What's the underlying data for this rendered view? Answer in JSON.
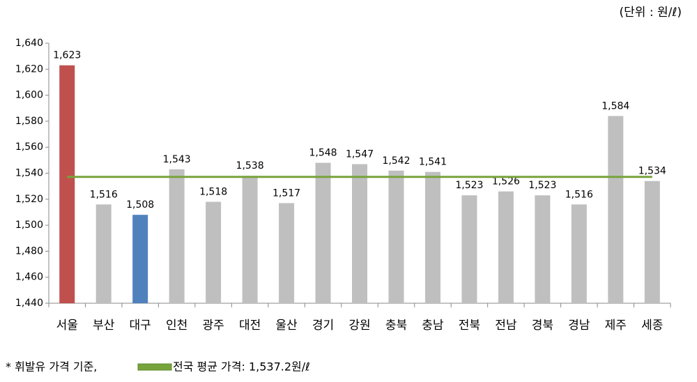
{
  "chart_data": {
    "type": "bar",
    "unit_note": "(단위 : 원/ℓ)",
    "categories": [
      "서울",
      "부산",
      "대구",
      "인천",
      "광주",
      "대전",
      "울산",
      "경기",
      "강원",
      "충북",
      "충남",
      "전북",
      "전남",
      "경북",
      "경남",
      "제주",
      "세종"
    ],
    "values": [
      1623,
      1516,
      1508,
      1543,
      1518,
      1538,
      1517,
      1548,
      1547,
      1542,
      1541,
      1523,
      1526,
      1523,
      1516,
      1584,
      1534
    ],
    "value_labels": [
      "1,623",
      "1,516",
      "1,508",
      "1,543",
      "1,518",
      "1,538",
      "1,517",
      "1,548",
      "1,547",
      "1,542",
      "1,541",
      "1,523",
      "1,526",
      "1,523",
      "1,516",
      "1,584",
      "1,534"
    ],
    "colors": [
      "#c0504d",
      "#bfbfbf",
      "#4f81bd",
      "#bfbfbf",
      "#bfbfbf",
      "#bfbfbf",
      "#bfbfbf",
      "#bfbfbf",
      "#bfbfbf",
      "#bfbfbf",
      "#bfbfbf",
      "#bfbfbf",
      "#bfbfbf",
      "#bfbfbf",
      "#bfbfbf",
      "#bfbfbf",
      "#bfbfbf"
    ],
    "ylim": [
      1440,
      1640
    ],
    "yticks": [
      {
        "value": 1440,
        "label": "1,440"
      },
      {
        "value": 1460,
        "label": "1,460"
      },
      {
        "value": 1480,
        "label": "1,480"
      },
      {
        "value": 1500,
        "label": "1,500"
      },
      {
        "value": 1520,
        "label": "1,520"
      },
      {
        "value": 1540,
        "label": "1,540"
      },
      {
        "value": 1560,
        "label": "1,560"
      },
      {
        "value": 1580,
        "label": "1,580"
      },
      {
        "value": 1600,
        "label": "1,600"
      },
      {
        "value": 1620,
        "label": "1,620"
      },
      {
        "value": 1640,
        "label": "1,640"
      }
    ],
    "average": {
      "value": 1537.2,
      "label": "전국 평균 가격: 1,537.2원/ℓ",
      "color": "#77a33c"
    },
    "footnote": "* 휘발유 가격 기준,"
  }
}
